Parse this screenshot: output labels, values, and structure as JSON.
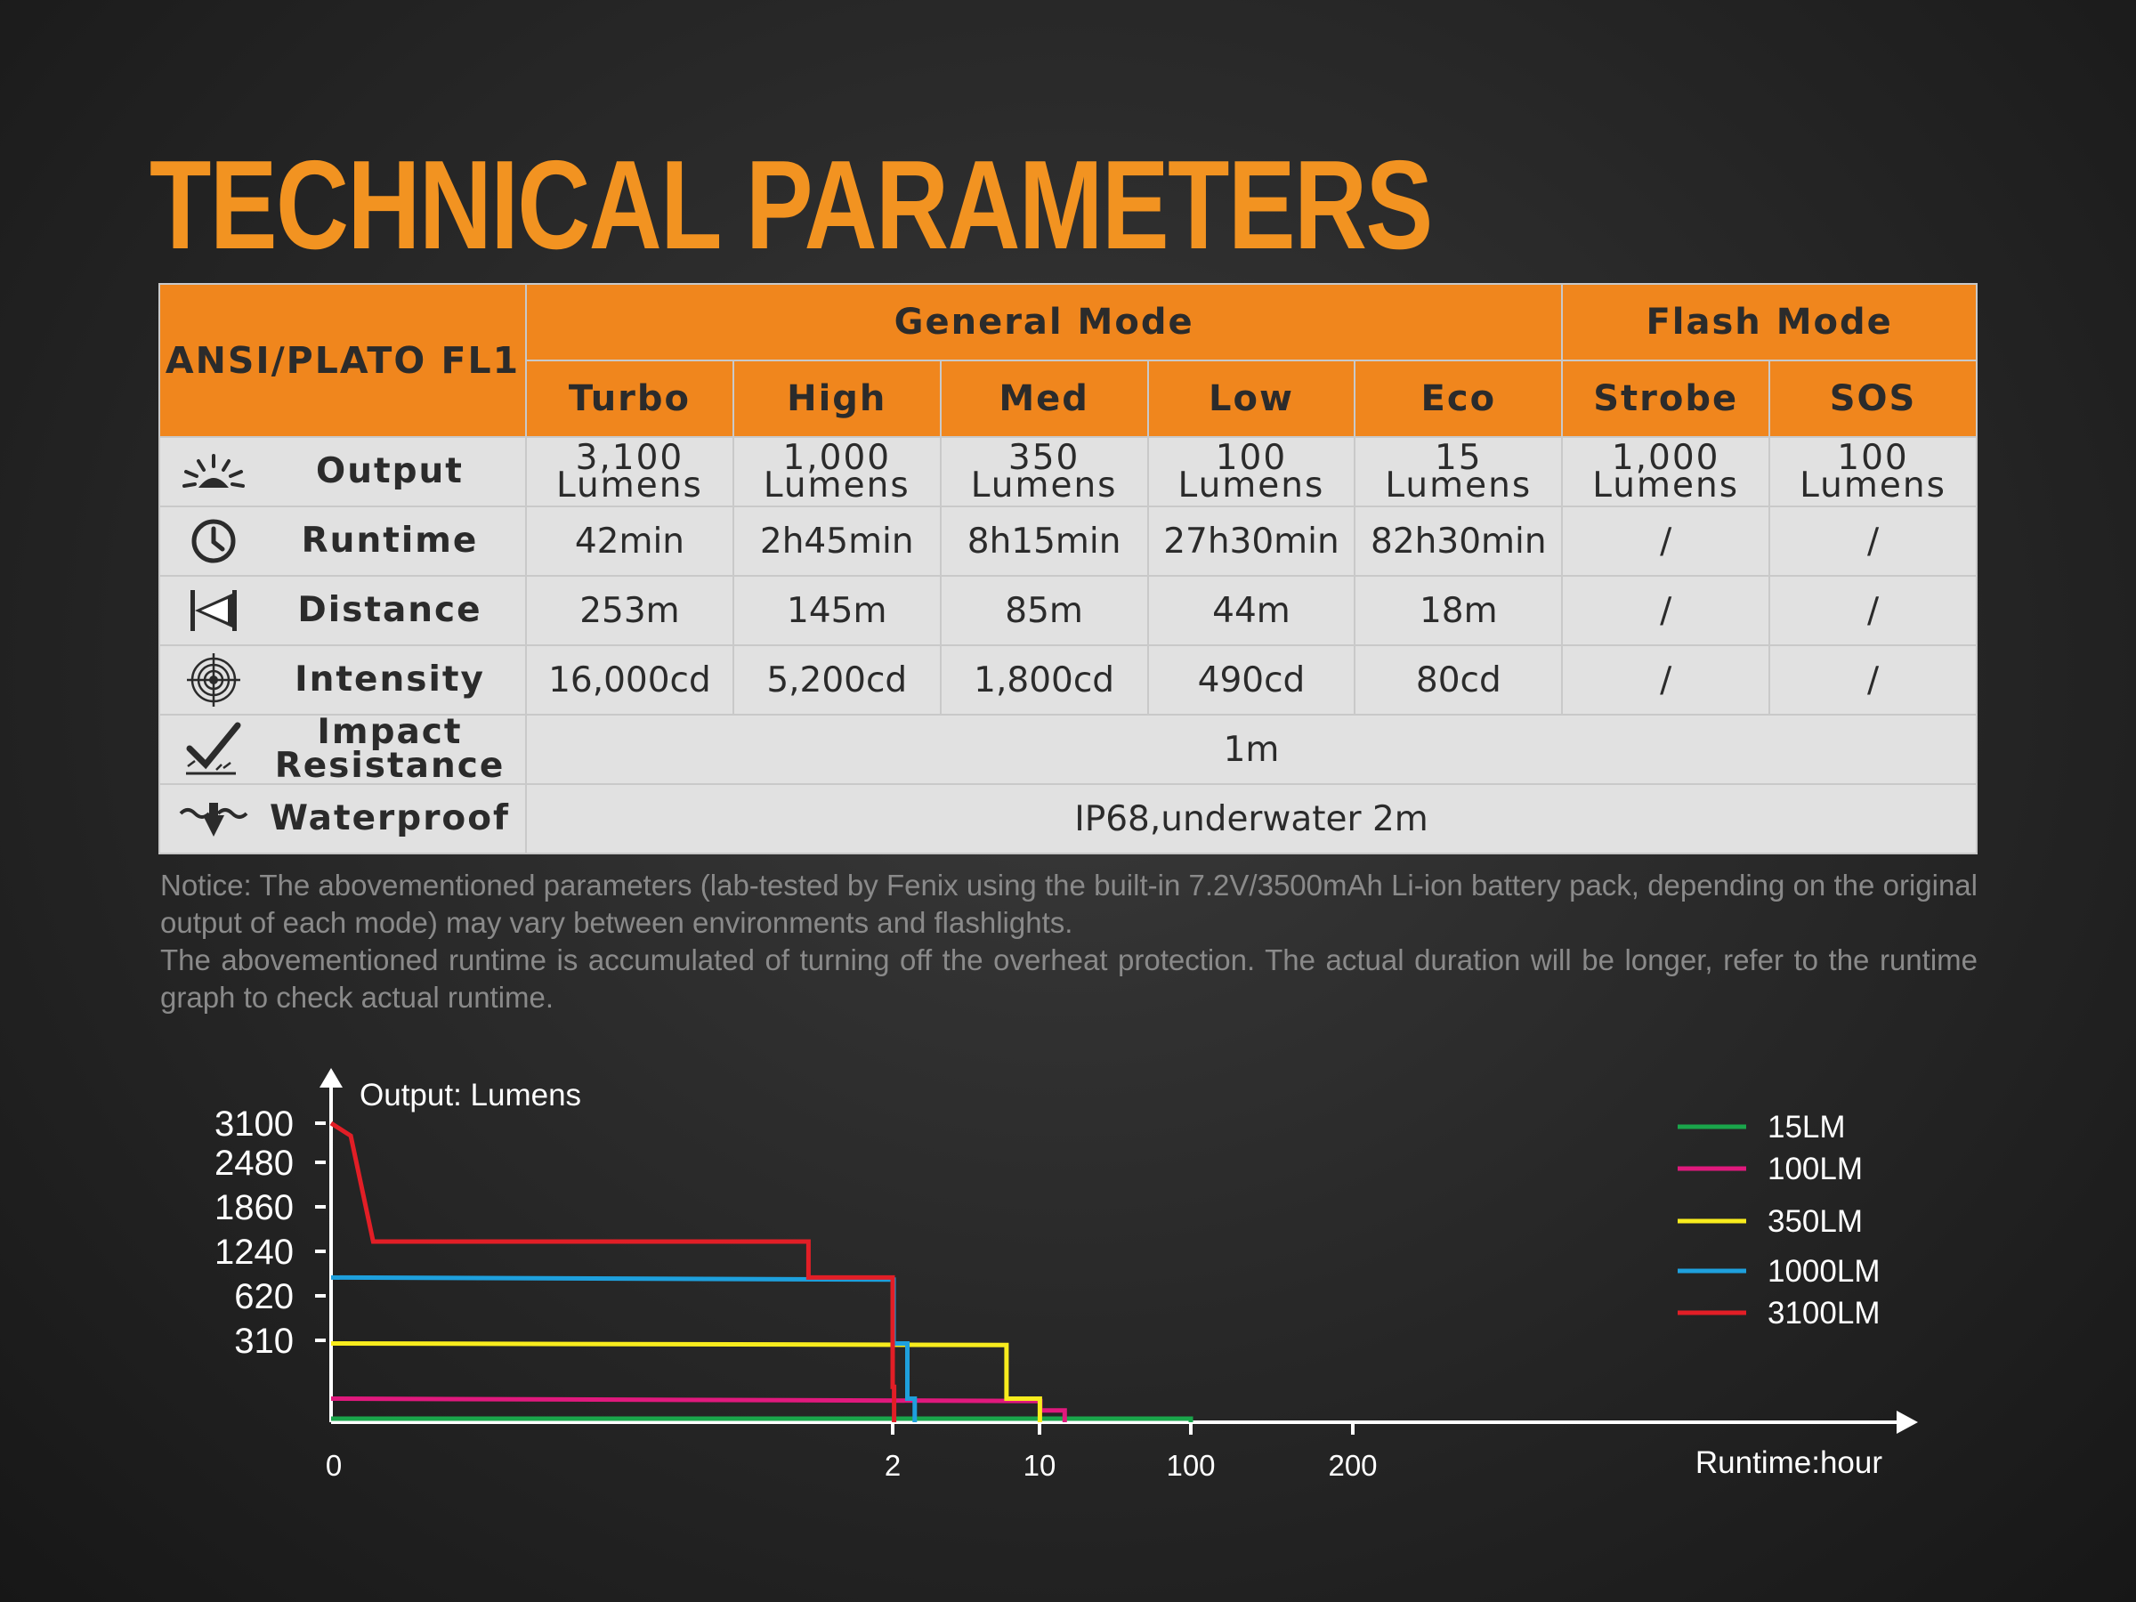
{
  "title": "TECHNICAL PARAMETERS",
  "table": {
    "corner_label": "ANSI/PLATO FL1",
    "group_general": "General Mode",
    "group_flash": "Flash Mode",
    "modes": [
      "Turbo",
      "High",
      "Med",
      "Low",
      "Eco",
      "Strobe",
      "SOS"
    ],
    "rows": {
      "output": {
        "label": "Output",
        "icon": "light-burst-icon",
        "values": [
          [
            "3,100",
            "Lumens"
          ],
          [
            "1,000",
            "Lumens"
          ],
          [
            "350",
            "Lumens"
          ],
          [
            "100",
            "Lumens"
          ],
          [
            "15",
            "Lumens"
          ],
          [
            "1,000",
            "Lumens"
          ],
          [
            "100",
            "Lumens"
          ]
        ]
      },
      "runtime": {
        "label": "Runtime",
        "icon": "clock-icon",
        "values": [
          "42min",
          "2h45min",
          "8h15min",
          "27h30min",
          "82h30min",
          "/",
          "/"
        ]
      },
      "distance": {
        "label": "Distance",
        "icon": "beam-distance-icon",
        "values": [
          "253m",
          "145m",
          "85m",
          "44m",
          "18m",
          "/",
          "/"
        ]
      },
      "intensity": {
        "label": "Intensity",
        "icon": "target-icon",
        "values": [
          "16,000cd",
          "5,200cd",
          "1,800cd",
          "490cd",
          "80cd",
          "/",
          "/"
        ]
      },
      "impact": {
        "label_line1": "Impact",
        "label_line2": "Resistance",
        "icon": "impact-icon",
        "value": "1m"
      },
      "waterproof": {
        "label": "Waterproof",
        "icon": "water-drop-icon",
        "value": "IP68,underwater 2m"
      }
    }
  },
  "notice": {
    "line1": "Notice: The abovementioned parameters (lab-tested by Fenix using the built-in 7.2V/3500mAh Li-ion battery pack, depending on the original output of each mode) may vary between environments and flashlights.",
    "line2": "The abovementioned runtime is accumulated of turning off the overheat protection. The actual duration will be longer, refer to the runtime graph to check actual runtime."
  },
  "colors": {
    "accent": "#f29321",
    "header_bg": "#f0861d",
    "cell_bg": "#e1e1e1"
  },
  "chart_data": {
    "type": "line",
    "ylabel": "Output: Lumens",
    "xlabel": "Runtime:hour",
    "y_ticks": [
      "3100",
      "2480",
      "1860",
      "1240",
      "620",
      "310"
    ],
    "x_ticks": [
      "0",
      "2",
      "10",
      "100",
      "200"
    ],
    "x_scale": "nonlinear (tick-indexed)",
    "grid": false,
    "legend_position": "top-right",
    "series": [
      {
        "name": "15LM",
        "color": "#1aa64b",
        "points": [
          [
            0,
            15
          ],
          [
            100,
            15
          ],
          [
            100,
            0
          ]
        ]
      },
      {
        "name": "100LM",
        "color": "#e0197d",
        "points": [
          [
            0,
            100
          ],
          [
            10,
            90
          ],
          [
            10.5,
            90
          ],
          [
            10.5,
            50
          ],
          [
            25,
            50
          ],
          [
            25,
            0
          ]
        ]
      },
      {
        "name": "350LM",
        "color": "#f8ec1d",
        "points": [
          [
            0,
            350
          ],
          [
            8.2,
            340
          ],
          [
            8.2,
            100
          ],
          [
            10.2,
            100
          ],
          [
            10.2,
            0
          ]
        ]
      },
      {
        "name": "1000LM",
        "color": "#1ea0dd",
        "points": [
          [
            0,
            1000
          ],
          [
            2.05,
            970
          ],
          [
            2.05,
            350
          ],
          [
            2.8,
            350
          ],
          [
            2.8,
            100
          ],
          [
            3.2,
            100
          ],
          [
            3.2,
            0
          ]
        ]
      },
      {
        "name": "3100LM",
        "color": "#e21e26",
        "points": [
          [
            0,
            3100
          ],
          [
            0.07,
            2900
          ],
          [
            0.15,
            1500
          ],
          [
            1.7,
            1500
          ],
          [
            1.7,
            1000
          ],
          [
            2.0,
            1000
          ],
          [
            2.0,
            150
          ],
          [
            2.08,
            150
          ],
          [
            2.08,
            0
          ]
        ]
      }
    ]
  }
}
